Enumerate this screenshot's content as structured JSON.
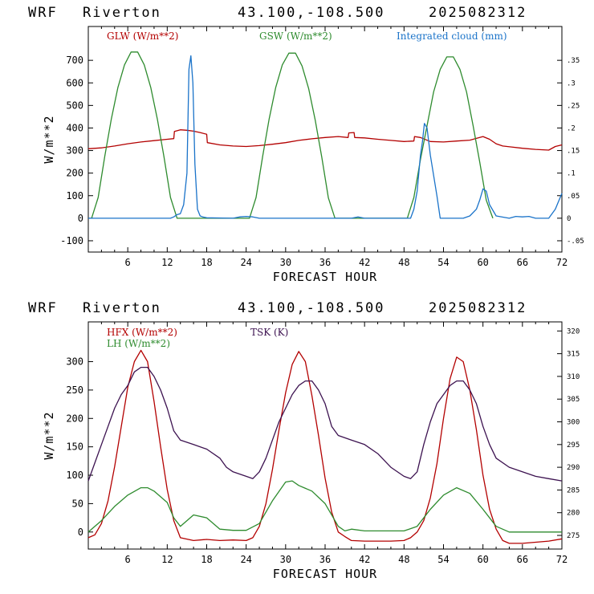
{
  "chart_data": [
    {
      "type": "line",
      "header": {
        "model": "WRF",
        "station": "Riverton",
        "coords": "43.100,-108.500",
        "run": "2025082312"
      },
      "xlabel": "FORECAST HOUR",
      "ylabel": "W/m**2",
      "xlim": [
        0,
        72
      ],
      "ylim": [
        -150,
        850
      ],
      "xticks": [
        "6",
        "12",
        "18",
        "24",
        "30",
        "36",
        "42",
        "48",
        "54",
        "60",
        "66",
        "72"
      ],
      "yticks": [
        "-100",
        "0",
        "100",
        "200",
        "300",
        "400",
        "500",
        "600",
        "700"
      ],
      "y2lim": [
        -0.075,
        0.425
      ],
      "y2ticks": [
        "-.05",
        "0",
        ".05",
        ".1",
        ".15",
        ".2",
        ".25",
        ".3",
        ".35"
      ],
      "series": [
        {
          "name": "GLW (W/m**2)",
          "color": "#b30000",
          "axis": "left",
          "x": [
            0,
            2,
            4,
            6,
            8,
            10,
            12,
            13,
            13.1,
            14,
            15,
            16,
            17,
            18,
            18.1,
            20,
            22,
            24,
            26,
            28,
            30,
            32,
            34,
            36,
            38,
            39.5,
            39.6,
            40.4,
            40.5,
            42,
            44,
            46,
            48,
            49.5,
            49.6,
            50.5,
            52,
            54,
            56,
            58,
            60,
            61,
            62,
            63,
            66,
            68,
            70,
            71,
            72
          ],
          "values": [
            308,
            312,
            320,
            330,
            338,
            344,
            350,
            353,
            385,
            392,
            390,
            386,
            380,
            372,
            335,
            325,
            320,
            318,
            322,
            328,
            335,
            345,
            352,
            358,
            362,
            358,
            378,
            380,
            358,
            356,
            350,
            345,
            340,
            342,
            362,
            358,
            340,
            338,
            342,
            346,
            362,
            350,
            330,
            320,
            310,
            305,
            302,
            318,
            325
          ]
        },
        {
          "name": "GSW (W/m**2)",
          "color": "#2e8b2e",
          "axis": "left",
          "x": [
            0.5,
            1.5,
            2.5,
            3.5,
            4.5,
            5.5,
            6.5,
            7.5,
            8.5,
            9.5,
            10.5,
            11.5,
            12.5,
            13.5,
            24.5,
            25.5,
            26.5,
            27.5,
            28.5,
            29.5,
            30.5,
            31.5,
            32.5,
            33.5,
            34.5,
            35.5,
            36.5,
            37.5,
            48.5,
            49.5,
            50.5,
            51.5,
            52.5,
            53.5,
            54.5,
            55.5,
            56.5,
            57.5,
            58.5,
            59.5,
            60.5,
            61.5
          ],
          "values": [
            0,
            92,
            274,
            440,
            580,
            680,
            737,
            737,
            680,
            580,
            440,
            274,
            92,
            0,
            0,
            92,
            274,
            440,
            580,
            680,
            732,
            732,
            675,
            575,
            435,
            270,
            90,
            0,
            0,
            92,
            260,
            410,
            560,
            660,
            715,
            715,
            660,
            560,
            410,
            250,
            80,
            0
          ]
        },
        {
          "name": "Integrated cloud (mm)",
          "color": "#1a73c9",
          "axis": "right",
          "x": [
            0,
            12.5,
            13,
            13.5,
            14,
            14.5,
            15,
            15.3,
            15.6,
            15.9,
            16.2,
            16.6,
            17,
            17.4,
            18,
            22,
            23,
            24,
            25,
            26,
            40,
            41,
            42,
            49,
            49.5,
            50,
            50.5,
            50.8,
            51.1,
            51.5,
            52,
            53,
            53.5,
            57,
            58,
            59,
            59.5,
            60,
            60.5,
            61,
            62,
            64,
            65,
            66,
            67,
            68,
            70,
            71,
            72
          ],
          "values": [
            0,
            0,
            0.003,
            0.008,
            0.01,
            0.03,
            0.1,
            0.33,
            0.36,
            0.3,
            0.12,
            0.02,
            0.005,
            0.003,
            0.001,
            0,
            0.003,
            0.004,
            0.003,
            0,
            0,
            0.003,
            0,
            0,
            0.02,
            0.06,
            0.14,
            0.17,
            0.21,
            0.2,
            0.14,
            0.05,
            0,
            0,
            0.005,
            0.02,
            0.04,
            0.065,
            0.06,
            0.03,
            0.005,
            0,
            0.004,
            0.003,
            0.004,
            0,
            0,
            0.02,
            0.055
          ]
        }
      ]
    },
    {
      "type": "line",
      "header": {
        "model": "WRF",
        "station": "Riverton",
        "coords": "43.100,-108.500",
        "run": "2025082312"
      },
      "xlabel": "FORECAST HOUR",
      "ylabel": "W/m**2",
      "xlim": [
        0,
        72
      ],
      "ylim": [
        -30,
        370
      ],
      "xticks": [
        "6",
        "12",
        "18",
        "24",
        "30",
        "36",
        "42",
        "48",
        "54",
        "60",
        "66",
        "72"
      ],
      "yticks": [
        "0",
        "50",
        "100",
        "150",
        "200",
        "250",
        "300"
      ],
      "y2lim": [
        272,
        322
      ],
      "y2ticks": [
        "275",
        "280",
        "285",
        "290",
        "295",
        "300",
        "305",
        "310",
        "315",
        "320"
      ],
      "series": [
        {
          "name": "HFX (W/m**2)",
          "color": "#b30000",
          "axis": "left",
          "x": [
            0,
            1,
            2,
            3,
            4,
            5,
            6,
            7,
            8,
            9,
            10,
            11,
            12,
            13,
            14,
            16,
            18,
            20,
            22,
            24,
            25,
            26,
            27,
            28,
            29,
            30,
            31,
            32,
            33,
            34,
            35,
            36,
            37,
            38,
            39,
            40,
            42,
            44,
            46,
            48,
            49,
            50,
            51,
            52,
            53,
            54,
            55,
            56,
            57,
            58,
            59,
            60,
            61,
            62,
            63,
            64,
            66,
            68,
            70,
            72
          ],
          "values": [
            -10,
            -5,
            15,
            55,
            115,
            185,
            255,
            300,
            320,
            300,
            230,
            150,
            75,
            20,
            -10,
            -15,
            -13,
            -15,
            -14,
            -15,
            -10,
            10,
            50,
            110,
            180,
            245,
            295,
            318,
            300,
            240,
            170,
            95,
            35,
            0,
            -8,
            -15,
            -16,
            -16,
            -16,
            -15,
            -10,
            0,
            20,
            60,
            120,
            200,
            270,
            308,
            300,
            250,
            180,
            100,
            40,
            5,
            -15,
            -20,
            -20,
            -18,
            -16,
            -12
          ]
        },
        {
          "name": "LH (W/m**2)",
          "color": "#2e8b2e",
          "axis": "left",
          "x": [
            0,
            2,
            4,
            6,
            8,
            9,
            10,
            12,
            13,
            14,
            15,
            16,
            18,
            20,
            22,
            24,
            26,
            28,
            30,
            31,
            32,
            34,
            36,
            38,
            39,
            40,
            42,
            44,
            48,
            50,
            52,
            54,
            56,
            58,
            60,
            62,
            64,
            66,
            68,
            70,
            72
          ],
          "values": [
            0,
            20,
            45,
            65,
            78,
            78,
            72,
            52,
            25,
            10,
            20,
            30,
            25,
            5,
            3,
            3,
            15,
            55,
            88,
            90,
            82,
            72,
            50,
            10,
            2,
            5,
            2,
            2,
            2,
            10,
            40,
            65,
            78,
            68,
            40,
            10,
            0,
            0,
            0,
            0,
            0
          ]
        },
        {
          "name": "TSK (K)",
          "color": "#3c1250",
          "axis": "right",
          "x": [
            0,
            1,
            2,
            3,
            4,
            5,
            6,
            7,
            8,
            9,
            10,
            11,
            12,
            13,
            14,
            16,
            18,
            20,
            21,
            22,
            24,
            25,
            26,
            27,
            28,
            29,
            30,
            31,
            32,
            33,
            34,
            35,
            36,
            37,
            38,
            40,
            42,
            44,
            46,
            48,
            49,
            50,
            51,
            52,
            53,
            54,
            55,
            56,
            57,
            58,
            59,
            60,
            61,
            62,
            64,
            66,
            68,
            70,
            72
          ],
          "values": [
            287,
            291,
            295,
            299,
            303,
            306,
            308,
            311,
            312,
            312,
            310,
            307,
            303,
            298,
            296,
            295,
            294,
            292,
            290,
            289,
            288,
            287.5,
            289,
            292,
            296,
            300,
            303,
            306,
            308,
            309,
            309,
            307,
            304,
            299,
            297,
            296,
            295,
            293,
            290,
            288,
            287.5,
            289,
            295,
            300,
            304,
            306,
            308,
            309,
            309,
            307,
            304,
            299,
            295,
            292,
            290,
            289,
            288,
            287.5,
            287
          ]
        }
      ]
    }
  ]
}
